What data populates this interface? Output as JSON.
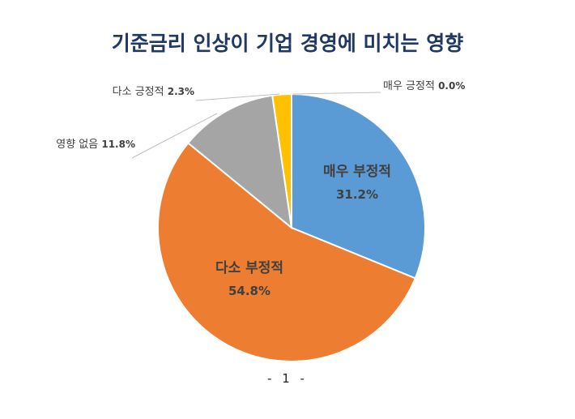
{
  "chart_data": {
    "type": "pie",
    "title": "기준금리 인상이 기업 경영에 미치는 영향",
    "slices": [
      {
        "label": "매우 부정적",
        "value": 31.2,
        "value_text": "31.2%",
        "color": "#5b9bd5",
        "label_position": "inside"
      },
      {
        "label": "다소 부정적",
        "value": 54.8,
        "value_text": "54.8%",
        "color": "#ed7d31",
        "label_position": "inside"
      },
      {
        "label": "영향 없음",
        "value": 11.8,
        "value_text": "11.8%",
        "color": "#a5a5a5",
        "label_position": "outside"
      },
      {
        "label": "다소 긍정적",
        "value": 2.3,
        "value_text": "2.3%",
        "color": "#ffc000",
        "label_position": "outside"
      },
      {
        "label": "매우 긍정적",
        "value": 0.0,
        "value_text": "0.0%",
        "color": "#4472c4",
        "label_position": "outside"
      }
    ],
    "start": "12 o'clock",
    "direction": "clockwise"
  },
  "page_number": "- 1 -"
}
